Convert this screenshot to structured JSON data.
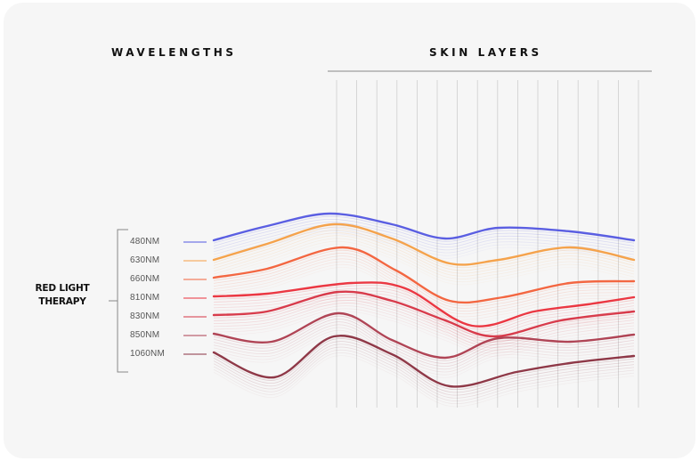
{
  "headings": {
    "wavelengths": "WAVELENGTHS",
    "skin_layers": "SKIN LAYERS"
  },
  "therapy_label": {
    "line1": "RED LIGHT",
    "line2": "THERAPY"
  },
  "colors": {
    "background": "#f6f6f6",
    "text": "#111111",
    "grid": "#c8c8c8",
    "bracket": "#888888"
  },
  "wavelengths": [
    {
      "label": "480NM",
      "color": "#4a4fe0"
    },
    {
      "label": "630NM",
      "color": "#f59a3a"
    },
    {
      "label": "660NM",
      "color": "#f3582f"
    },
    {
      "label": "810NM",
      "color": "#ea2430"
    },
    {
      "label": "830NM",
      "color": "#d5283a"
    },
    {
      "label": "850NM",
      "color": "#a83245"
    },
    {
      "label": "1060NM",
      "color": "#842535"
    }
  ]
}
